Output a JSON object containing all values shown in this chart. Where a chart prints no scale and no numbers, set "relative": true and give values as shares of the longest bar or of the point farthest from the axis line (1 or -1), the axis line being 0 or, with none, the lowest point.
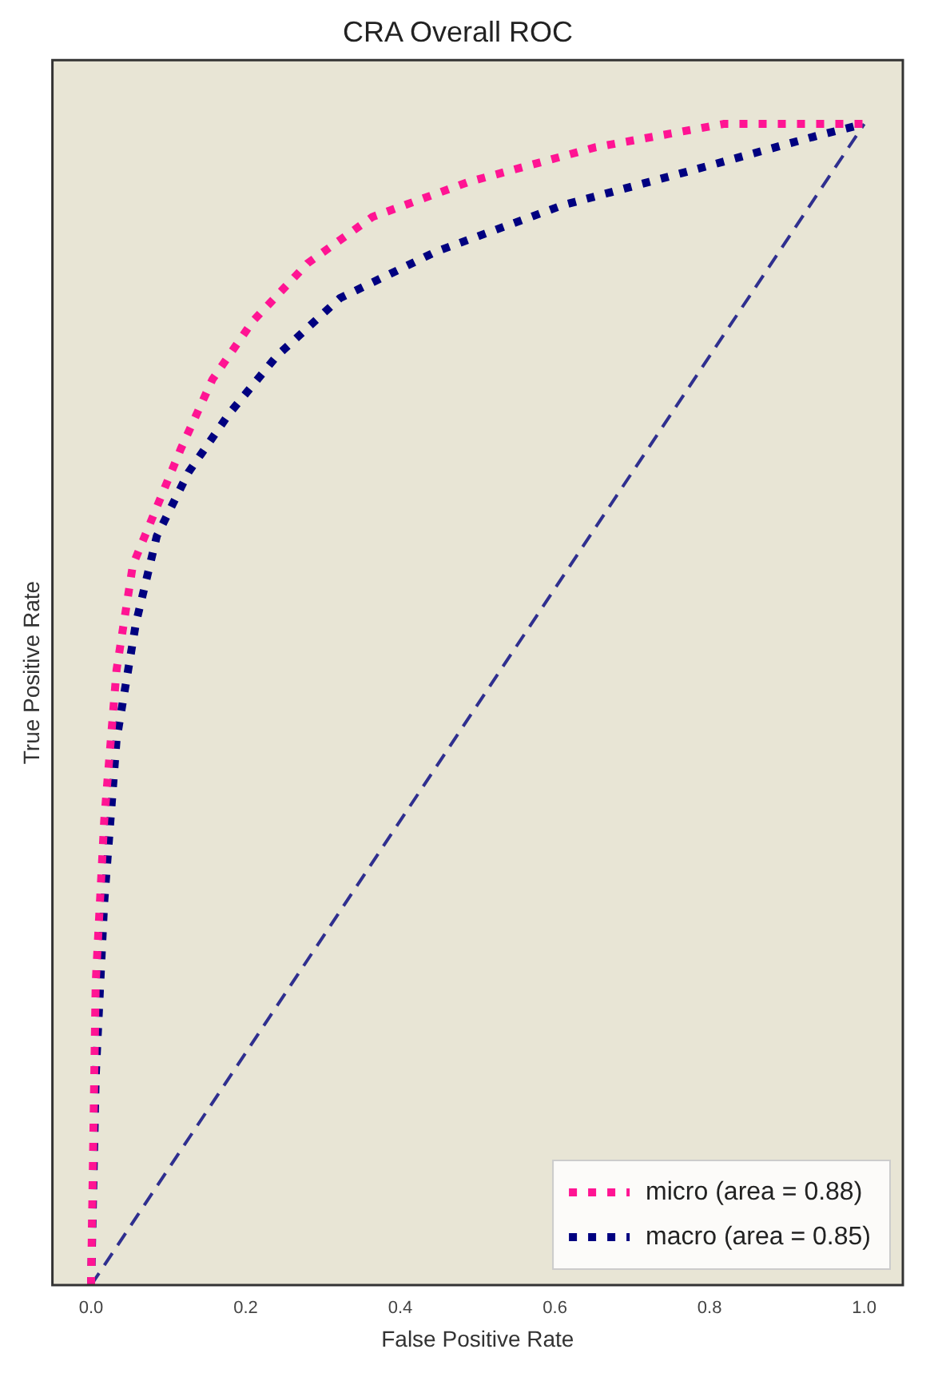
{
  "chart_data": {
    "type": "line",
    "title": "CRA Overall ROC",
    "xlabel": "False Positive Rate",
    "ylabel": "True Positive Rate",
    "relative": true,
    "xlim": [
      -0.05,
      1.05
    ],
    "xticks": [
      {
        "value": 0,
        "label": "0.0"
      },
      0.2,
      0.4,
      0.6,
      0.8,
      {
        "value": 1,
        "label": "1.0"
      }
    ],
    "tick_labels": "x",
    "grid": false,
    "legend": "bottom right",
    "marker": "none",
    "series": [
      {
        "name": "micro (area = 0.88)",
        "color": "#ff1493",
        "line_style": "dotted",
        "x": [
          0,
          0.006,
          0.017,
          0.033,
          0.054,
          0.085,
          0.116,
          0.157,
          0.209,
          0.28,
          0.364,
          0.488,
          0.653,
          0.818,
          1
        ],
        "values": [
          0,
          0.26,
          0.4,
          0.53,
          0.62,
          0.67,
          0.72,
          0.78,
          0.83,
          0.88,
          0.92,
          0.95,
          0.98,
          1,
          1
        ]
      },
      {
        "name": "macro (area = 0.85)",
        "color": "#000080",
        "line_style": "dotted",
        "x": [
          0,
          0.006,
          0.017,
          0.033,
          0.058,
          0.085,
          0.126,
          0.178,
          0.24,
          0.322,
          0.446,
          0.61,
          0.777,
          0.94,
          1
        ],
        "values": [
          0,
          0.18,
          0.33,
          0.47,
          0.57,
          0.645,
          0.7,
          0.75,
          0.8,
          0.85,
          0.89,
          0.93,
          0.96,
          0.99,
          1
        ]
      },
      {
        "color": "#2f2f8f",
        "line_style": "dashed",
        "x": [
          0,
          1
        ],
        "values": [
          0,
          1
        ]
      }
    ]
  }
}
